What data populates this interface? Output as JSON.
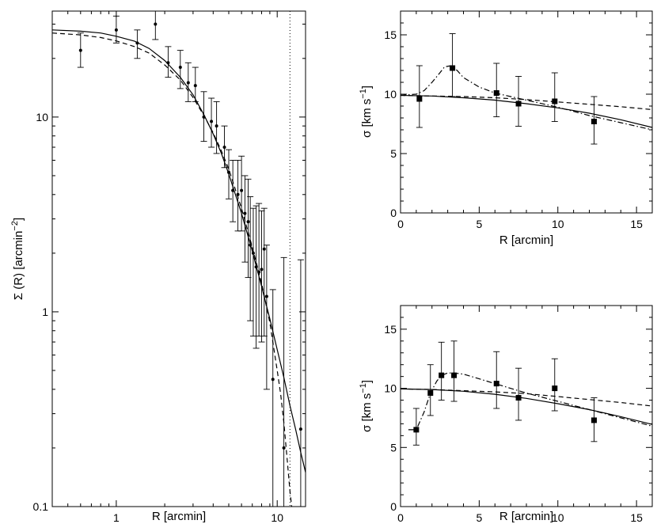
{
  "chart_data": [
    {
      "id": "surface-density",
      "type": "scatter",
      "scale": "log-log",
      "xlabel": "R  [arcmin]",
      "ylabel": "Σ (R)  [arcmin",
      "ylabel_sup": "−2",
      "ylabel_end": "]",
      "xlim": [
        0.4,
        15
      ],
      "ylim": [
        0.1,
        35
      ],
      "x_ticks": [
        {
          "v": 1,
          "label": "1"
        },
        {
          "v": 10,
          "label": "10"
        }
      ],
      "y_ticks": [
        {
          "v": 0.1,
          "label": "0.1"
        },
        {
          "v": 1,
          "label": "1"
        },
        {
          "v": 10,
          "label": "10"
        }
      ],
      "vline_dotted": 12,
      "points": [
        {
          "x": 0.6,
          "y": 22,
          "lo": 18,
          "hi": 27
        },
        {
          "x": 1.0,
          "y": 28,
          "lo": 24,
          "hi": 33
        },
        {
          "x": 1.35,
          "y": 24,
          "lo": 20,
          "hi": 28
        },
        {
          "x": 1.75,
          "y": 30,
          "lo": 25,
          "hi": 36
        },
        {
          "x": 2.1,
          "y": 19,
          "lo": 16,
          "hi": 23
        },
        {
          "x": 2.5,
          "y": 18,
          "lo": 14,
          "hi": 22
        },
        {
          "x": 2.8,
          "y": 15,
          "lo": 12,
          "hi": 19
        },
        {
          "x": 3.1,
          "y": 14.5,
          "lo": 12,
          "hi": 18
        },
        {
          "x": 3.5,
          "y": 10,
          "lo": 7.5,
          "hi": 13.5
        },
        {
          "x": 3.9,
          "y": 9.5,
          "lo": 7,
          "hi": 12.5
        },
        {
          "x": 4.2,
          "y": 9,
          "lo": 6.5,
          "hi": 12
        },
        {
          "x": 4.7,
          "y": 7,
          "lo": 5.5,
          "hi": 9
        },
        {
          "x": 5.0,
          "y": 5.2,
          "lo": 3.8,
          "hi": 6.8
        },
        {
          "x": 5.3,
          "y": 4.2,
          "lo": 2.9,
          "hi": 6
        },
        {
          "x": 5.7,
          "y": 4,
          "lo": 2.6,
          "hi": 6
        },
        {
          "x": 6.0,
          "y": 4.2,
          "lo": 2.6,
          "hi": 6.3
        },
        {
          "x": 6.3,
          "y": 3.2,
          "lo": 1.8,
          "hi": 5
        },
        {
          "x": 6.6,
          "y": 2.9,
          "lo": 1.5,
          "hi": 4.8
        },
        {
          "x": 6.8,
          "y": 2.2,
          "lo": 0.9,
          "hi": 3.9
        },
        {
          "x": 7.1,
          "y": 2,
          "lo": 0.75,
          "hi": 3.4
        },
        {
          "x": 7.4,
          "y": 1.7,
          "lo": 0.65,
          "hi": 3.5
        },
        {
          "x": 7.7,
          "y": 1.6,
          "lo": 0.75,
          "hi": 3.6
        },
        {
          "x": 8.0,
          "y": 1.65,
          "lo": 0.7,
          "hi": 3.3
        },
        {
          "x": 8.3,
          "y": 2.1,
          "lo": 0.75,
          "hi": 3.4
        },
        {
          "x": 8.6,
          "y": 1.2,
          "lo": 0.4,
          "hi": 2.2
        },
        {
          "x": 9.4,
          "y": 0.45,
          "lo": 0.1,
          "hi": 1.3
        },
        {
          "x": 11.0,
          "y": 0.2,
          "lo": 0.1,
          "hi": 1.9
        },
        {
          "x": 14.0,
          "y": 0.25,
          "lo": 0.1,
          "hi": 1.85
        }
      ],
      "series": [
        {
          "name": "solid model",
          "style": "solid",
          "x": [
            0.4,
            0.6,
            0.8,
            1,
            1.3,
            1.6,
            2,
            2.5,
            3,
            3.5,
            4,
            4.5,
            5,
            6,
            7,
            8,
            9,
            10,
            11,
            12,
            13,
            14,
            15
          ],
          "y": [
            28,
            27.6,
            27,
            26,
            24.5,
            22.5,
            19.5,
            16,
            13,
            10.3,
            8.2,
            6.5,
            5.1,
            3.2,
            2.05,
            1.35,
            0.92,
            0.64,
            0.46,
            0.33,
            0.25,
            0.19,
            0.15
          ]
        },
        {
          "name": "dashed model",
          "style": "dashed",
          "x": [
            0.4,
            0.6,
            0.8,
            1,
            1.3,
            1.6,
            2,
            2.5,
            3,
            3.5,
            4,
            4.5,
            5,
            6,
            7,
            8,
            9,
            10,
            10.5,
            11,
            11.5,
            12,
            12.3
          ],
          "y": [
            27,
            26.4,
            25.6,
            24.6,
            23,
            21.3,
            18.5,
            15.5,
            12.6,
            10.2,
            8.3,
            6.7,
            5.4,
            3.4,
            2.15,
            1.4,
            0.88,
            0.5,
            0.38,
            0.27,
            0.18,
            0.12,
            0.1
          ]
        }
      ]
    },
    {
      "id": "dispersion-top",
      "type": "scatter",
      "xlabel": "R  [arcmin]",
      "ylabel": "σ [km s",
      "ylabel_sup": "−1",
      "ylabel_end": "]",
      "xlim": [
        0,
        16
      ],
      "ylim": [
        0,
        17
      ],
      "x_ticks": [
        {
          "v": 0,
          "label": "0"
        },
        {
          "v": 5,
          "label": "5"
        },
        {
          "v": 10,
          "label": "10"
        },
        {
          "v": 15,
          "label": "15"
        }
      ],
      "y_ticks": [
        {
          "v": 0,
          "label": "0"
        },
        {
          "v": 5,
          "label": "5"
        },
        {
          "v": 10,
          "label": "10"
        },
        {
          "v": 15,
          "label": "15"
        }
      ],
      "points": [
        {
          "x": 1.2,
          "y": 9.6,
          "lo": 7.2,
          "hi": 12.4
        },
        {
          "x": 3.3,
          "y": 12.2,
          "lo": 9.8,
          "hi": 15.1
        },
        {
          "x": 6.1,
          "y": 10.1,
          "lo": 8.1,
          "hi": 12.6
        },
        {
          "x": 7.5,
          "y": 9.2,
          "lo": 7.3,
          "hi": 11.5
        },
        {
          "x": 9.8,
          "y": 9.4,
          "lo": 7.7,
          "hi": 11.8
        },
        {
          "x": 12.3,
          "y": 7.7,
          "lo": 5.8,
          "hi": 9.8
        }
      ],
      "series": [
        {
          "name": "solid model",
          "style": "solid",
          "x": [
            0,
            2,
            4,
            6,
            8,
            10,
            12,
            14,
            16
          ],
          "y": [
            9.9,
            9.85,
            9.7,
            9.5,
            9.2,
            8.85,
            8.4,
            7.85,
            7.2
          ]
        },
        {
          "name": "dashed model",
          "style": "dashed",
          "x": [
            0,
            2,
            4,
            6,
            8,
            10,
            12,
            14,
            16
          ],
          "y": [
            9.9,
            9.85,
            9.8,
            9.7,
            9.55,
            9.35,
            9.15,
            8.95,
            8.7
          ]
        },
        {
          "name": "dash-dot model",
          "style": "dashdot",
          "x": [
            0,
            1,
            1.5,
            2,
            2.5,
            2.8,
            3.2,
            3.6,
            4,
            5,
            6,
            8,
            10,
            12,
            14,
            16
          ],
          "y": [
            9.9,
            10.0,
            10.3,
            11.0,
            11.8,
            12.3,
            12.4,
            12.0,
            11.4,
            10.6,
            10.1,
            9.5,
            8.9,
            8.2,
            7.6,
            7.0
          ]
        }
      ]
    },
    {
      "id": "dispersion-bottom",
      "type": "scatter",
      "xlabel": "R  [arcmin]",
      "ylabel": "σ [km s",
      "ylabel_sup": "−1",
      "ylabel_end": "]",
      "xlim": [
        0,
        16
      ],
      "ylim": [
        0,
        17
      ],
      "x_ticks": [
        {
          "v": 0,
          "label": "0"
        },
        {
          "v": 5,
          "label": "5"
        },
        {
          "v": 10,
          "label": "10"
        },
        {
          "v": 15,
          "label": "15"
        }
      ],
      "y_ticks": [
        {
          "v": 0,
          "label": "0"
        },
        {
          "v": 5,
          "label": "5"
        },
        {
          "v": 10,
          "label": "10"
        },
        {
          "v": 15,
          "label": "15"
        }
      ],
      "points": [
        {
          "x": 1.0,
          "y": 6.5,
          "lo": 5.2,
          "hi": 8.3
        },
        {
          "x": 1.9,
          "y": 9.6,
          "lo": 7.7,
          "hi": 12.0
        },
        {
          "x": 2.6,
          "y": 11.1,
          "lo": 9.0,
          "hi": 13.9
        },
        {
          "x": 3.4,
          "y": 11.1,
          "lo": 8.9,
          "hi": 14.0
        },
        {
          "x": 6.1,
          "y": 10.4,
          "lo": 8.3,
          "hi": 13.1
        },
        {
          "x": 7.5,
          "y": 9.2,
          "lo": 7.3,
          "hi": 11.7
        },
        {
          "x": 9.8,
          "y": 10.0,
          "lo": 8.1,
          "hi": 12.5
        },
        {
          "x": 12.3,
          "y": 7.3,
          "lo": 5.5,
          "hi": 9.2
        }
      ],
      "series": [
        {
          "name": "solid model",
          "style": "solid",
          "x": [
            0,
            2,
            4,
            6,
            8,
            10,
            12,
            14,
            16
          ],
          "y": [
            9.95,
            9.9,
            9.75,
            9.5,
            9.15,
            8.7,
            8.2,
            7.6,
            6.95
          ]
        },
        {
          "name": "dashed model",
          "style": "dashed",
          "x": [
            0,
            2,
            4,
            6,
            8,
            10,
            12,
            14,
            16
          ],
          "y": [
            9.95,
            9.9,
            9.8,
            9.7,
            9.55,
            9.3,
            9.05,
            8.8,
            8.5
          ]
        },
        {
          "name": "dash-dot model",
          "style": "dashdot",
          "x": [
            0.5,
            1.0,
            1.5,
            1.9,
            2.3,
            2.6,
            3.0,
            3.4,
            4.0,
            5.0,
            6.0,
            8.0,
            10,
            12,
            14,
            16
          ],
          "y": [
            6.5,
            6.5,
            8.0,
            9.6,
            10.6,
            11.1,
            11.3,
            11.3,
            11.2,
            10.8,
            10.4,
            9.6,
            8.9,
            8.2,
            7.5,
            6.8
          ]
        }
      ]
    }
  ]
}
